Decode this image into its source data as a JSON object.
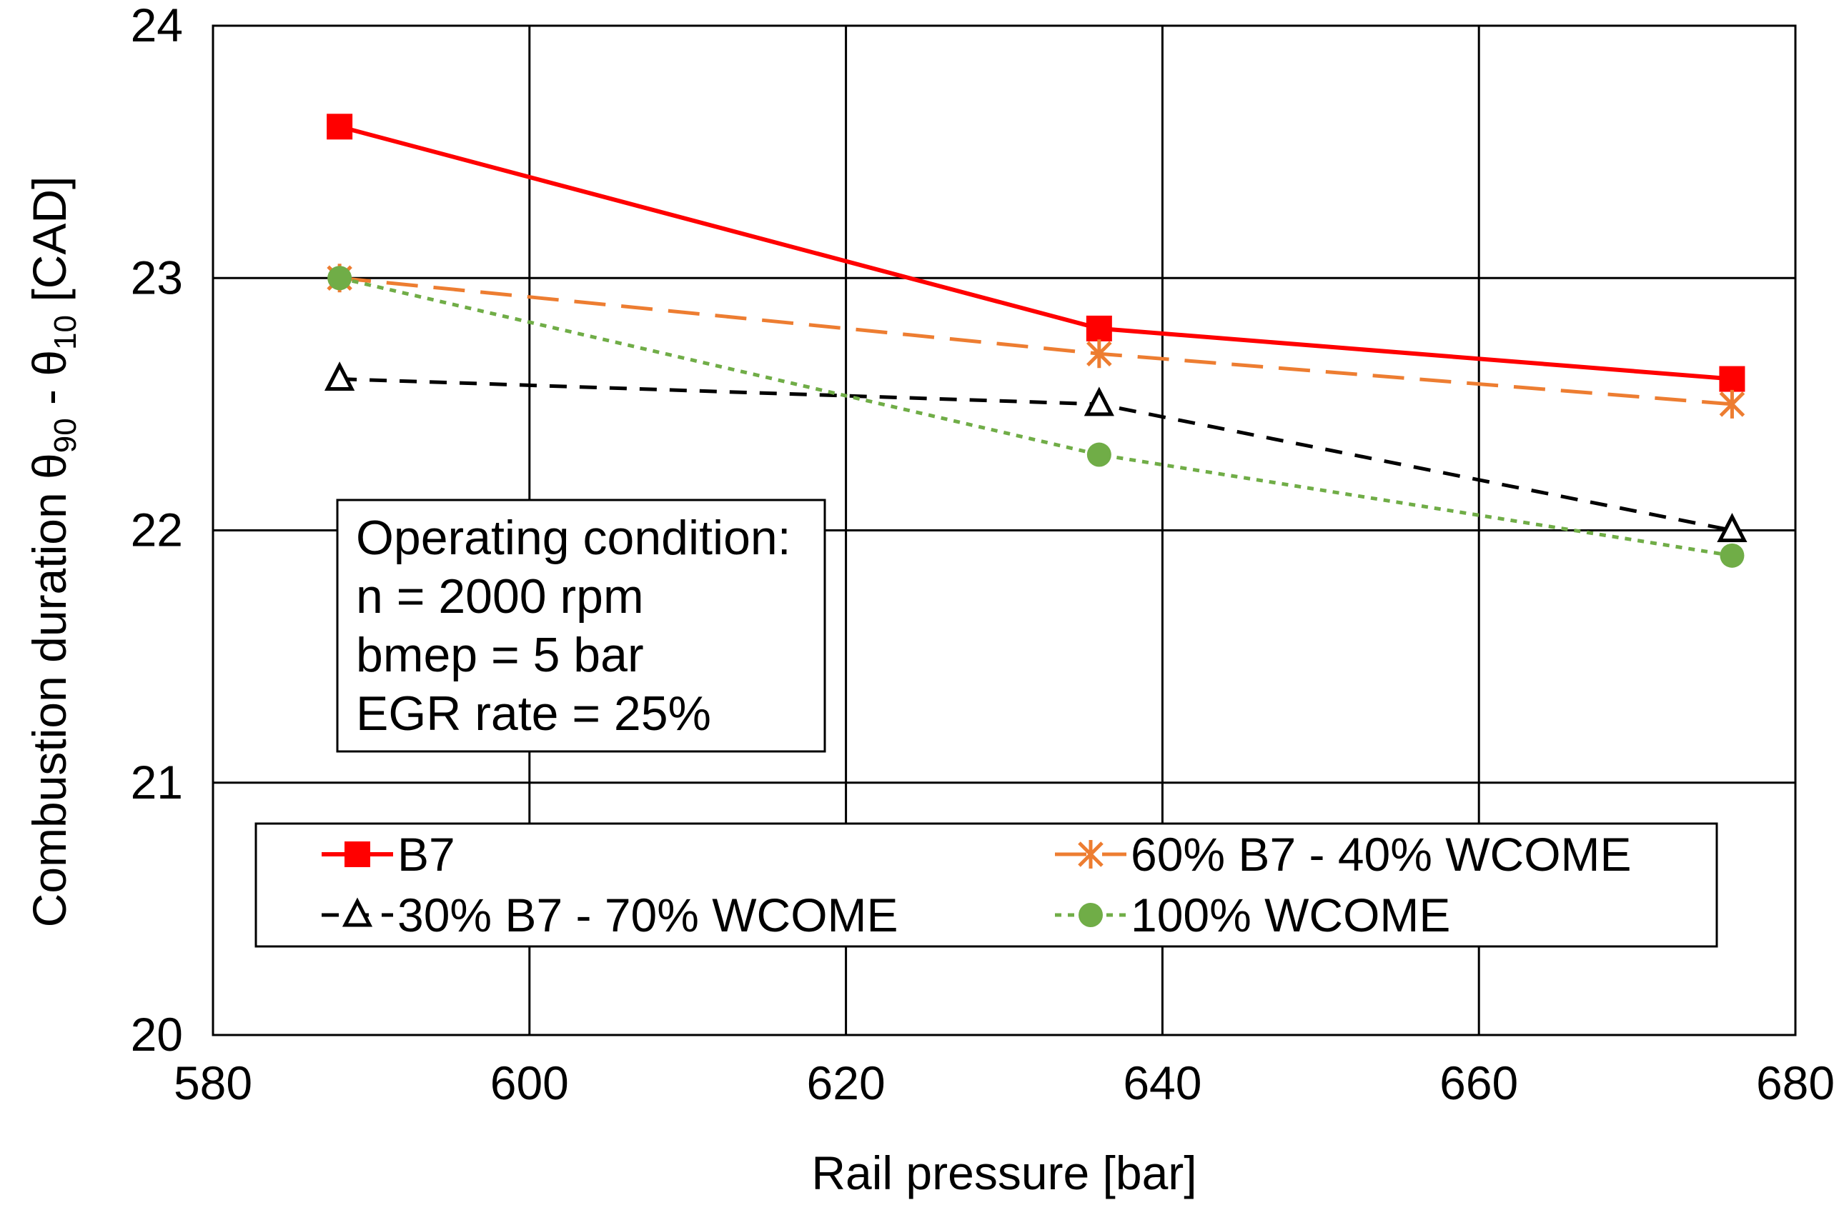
{
  "chart_data": {
    "type": "line",
    "xlabel": "Rail pressure [bar]",
    "ylabel": {
      "prefix": "Combustion duration θ",
      "sub1": "90",
      "mid": " - θ",
      "sub2": "10",
      "suffix": " [CAD]"
    },
    "xlim": [
      580,
      680
    ],
    "ylim": [
      20,
      24
    ],
    "x_ticks": [
      580,
      600,
      620,
      640,
      660,
      680
    ],
    "y_ticks": [
      20,
      21,
      22,
      23,
      24
    ],
    "grid": true,
    "x": [
      588,
      636,
      676
    ],
    "series": [
      {
        "name": "B7",
        "values": [
          23.6,
          22.8,
          22.6
        ],
        "color": "#ff0000",
        "style": "solid",
        "marker": "square"
      },
      {
        "name": "60% B7 - 40% WCOME",
        "values": [
          23.0,
          22.7,
          22.5
        ],
        "color": "#ed7d31",
        "style": "long-dash",
        "marker": "asterisk"
      },
      {
        "name": "30% B7 - 70% WCOME",
        "values": [
          22.6,
          22.5,
          22.0
        ],
        "color": "#000000",
        "style": "dash",
        "marker": "triangle-open"
      },
      {
        "name": "100% WCOME",
        "values": [
          23.0,
          22.3,
          21.9
        ],
        "color": "#70ad47",
        "style": "dot",
        "marker": "circle"
      }
    ],
    "annotation": {
      "lines": [
        "Operating condition:",
        "n = 2000 rpm",
        "bmep = 5 bar",
        "EGR rate = 25%"
      ]
    },
    "legend_position": "bottom-inside"
  }
}
